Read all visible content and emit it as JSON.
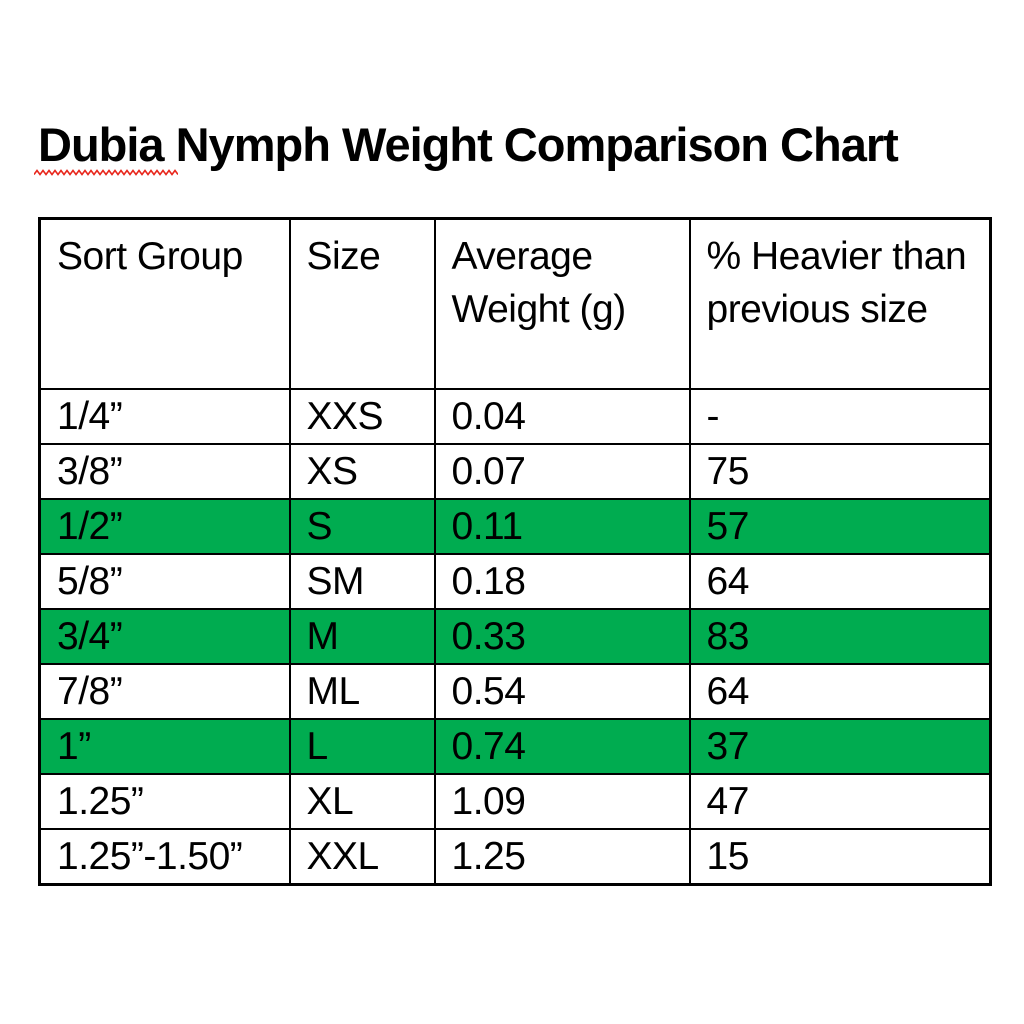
{
  "title": {
    "text": "Dubia Nymph Weight Comparison Chart",
    "misspelled_word": "Dubia"
  },
  "colors": {
    "highlight_green": "#00AC50",
    "squiggle_red": "#E8281E",
    "border_black": "#000000",
    "text_black": "#000000",
    "page_background": "#FFFFFF"
  },
  "chart_data": {
    "type": "table",
    "title": "Dubia Nymph Weight Comparison Chart",
    "columns": [
      "Sort Group",
      "Size",
      "Average Weight (g)",
      "% Heavier than previous size"
    ],
    "rows": [
      [
        "1/4”",
        "XXS",
        "0.04",
        "-"
      ],
      [
        "3/8”",
        "XS",
        "0.07",
        "75"
      ],
      [
        "1/2”",
        "S",
        "0.11",
        "57"
      ],
      [
        "5/8”",
        "SM",
        "0.18",
        "64"
      ],
      [
        "3/4”",
        "M",
        "0.33",
        "83"
      ],
      [
        "7/8”",
        "ML",
        "0.54",
        "64"
      ],
      [
        "1”",
        "L",
        "0.74",
        "37"
      ],
      [
        "1.25”",
        "XL",
        "1.09",
        "47"
      ],
      [
        "1.25”-1.50”",
        "XXL",
        "1.25",
        "15"
      ]
    ],
    "highlighted_rows": [
      2,
      4,
      6
    ],
    "highlight_color": "#00AC50",
    "layout_hints": {
      "header_double_underline_columns": [
        0,
        1,
        2
      ],
      "grid": "on",
      "legend": "none"
    }
  }
}
